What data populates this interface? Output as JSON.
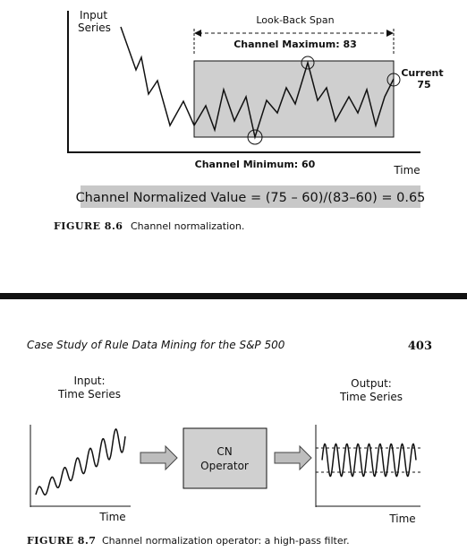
{
  "figure_8_6": {
    "input_label": [
      "Input",
      "Series"
    ],
    "span_label": "Look-Back Span",
    "max_label": "Channel Maximum: 83",
    "current_label": [
      "Current",
      "75"
    ],
    "min_label": "Channel Minimum: 60",
    "time_label": "Time",
    "formula": "Channel Normalized Value = (75 – 60)/(83–60) = 0.65",
    "caption_number": "FIGURE 8.6",
    "caption_text": "Channel normalization."
  },
  "header": {
    "running_title": "Case Study of Rule Data Mining for the S&P 500",
    "page_number": "403"
  },
  "figure_8_7": {
    "input_label": [
      "Input:",
      "Time Series"
    ],
    "output_label": [
      "Output:",
      "Time Series"
    ],
    "operator_label": [
      "CN",
      "Operator"
    ],
    "input_time_label": "Time",
    "output_time_label": "Time",
    "caption_number": "FIGURE 8.7",
    "caption_text": "Channel normalization operator: a high-pass filter."
  }
}
